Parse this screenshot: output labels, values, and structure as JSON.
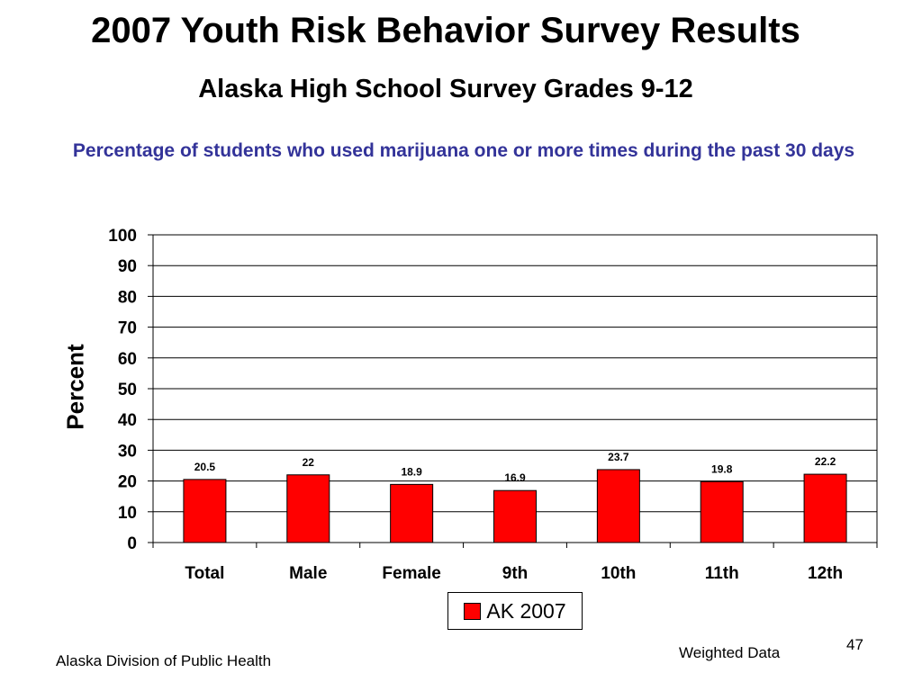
{
  "slide": {
    "title": "2007 Youth Risk Behavior Survey Results",
    "subtitle": "Alaska High School Survey Grades 9-12",
    "footer_left": "Alaska Division of Public Health",
    "footer_right": "Weighted Data",
    "page_number": "47"
  },
  "colors": {
    "bar": "#ff0000",
    "chart_title": "#333399"
  },
  "chart_data": {
    "type": "bar",
    "title": "Percentage of students who used marijuana one or more times during the past 30 days",
    "ylabel": "Percent",
    "xlabel": "",
    "ylim": [
      0,
      100
    ],
    "yticks": [
      0,
      10,
      20,
      30,
      40,
      50,
      60,
      70,
      80,
      90,
      100
    ],
    "grid": true,
    "legend_position": "bottom",
    "categories": [
      "Total",
      "Male",
      "Female",
      "9th",
      "10th",
      "11th",
      "12th"
    ],
    "series": [
      {
        "name": "AK 2007",
        "values": [
          20.5,
          22,
          18.9,
          16.9,
          23.7,
          19.8,
          22.2
        ],
        "labels": [
          "20.5",
          "22",
          "18.9",
          "16.9",
          "23.7",
          "19.8",
          "22.2"
        ]
      }
    ]
  }
}
